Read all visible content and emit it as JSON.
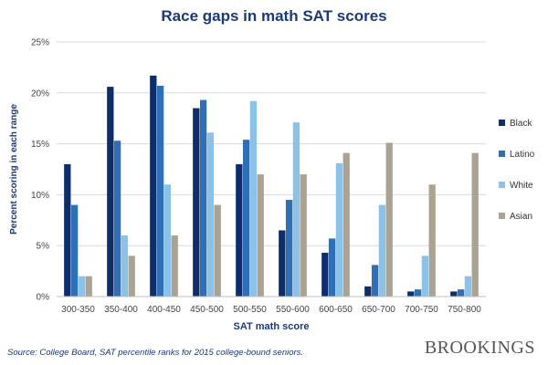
{
  "chart_data": {
    "type": "bar",
    "title": "Race gaps in math SAT scores",
    "xlabel": "SAT math score",
    "ylabel": "Percent scoring in each range",
    "ylim": [
      0,
      25
    ],
    "yticks": [
      "0%",
      "5%",
      "10%",
      "15%",
      "20%",
      "25%"
    ],
    "grid": true,
    "legend_position": "right",
    "categories": [
      "300-350",
      "350-400",
      "400-450",
      "450-500",
      "500-550",
      "550-600",
      "600-650",
      "650-700",
      "700-750",
      "750-800"
    ],
    "series": [
      {
        "name": "Black",
        "color": "#0d2d6b",
        "values": [
          13,
          20.6,
          21.7,
          18.5,
          13,
          6.5,
          4.3,
          1,
          0.5,
          0.5
        ]
      },
      {
        "name": "Latino",
        "color": "#2f6fb5",
        "values": [
          9,
          15.3,
          20.7,
          19.3,
          15.4,
          9.5,
          5.7,
          3.1,
          0.7,
          0.7
        ]
      },
      {
        "name": "White",
        "color": "#8cc1e8",
        "values": [
          2,
          6,
          11,
          16.1,
          19.2,
          17.1,
          13.1,
          9,
          4,
          2
        ]
      },
      {
        "name": "Asian",
        "color": "#aaa293",
        "values": [
          2,
          4,
          6,
          9,
          12,
          12,
          14.1,
          15.1,
          11,
          14.1
        ]
      }
    ]
  },
  "footer": {
    "source": "Source: College Board, SAT percentile ranks for 2015 college-bound seniors.",
    "brand": "BROOKINGS"
  },
  "colors": {
    "title": "#1a3a78",
    "axis_title": "#1a3a78",
    "grid": "#d9d9d9"
  }
}
